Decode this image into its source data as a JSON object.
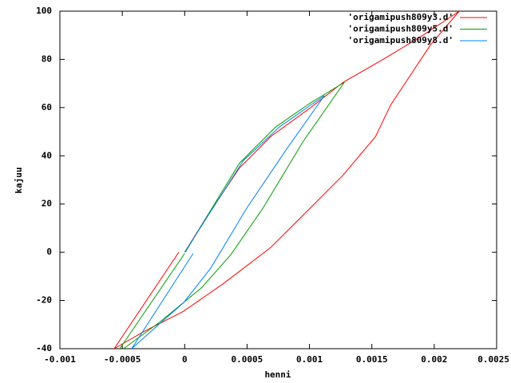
{
  "chart_data": {
    "type": "line",
    "x_label": "henni",
    "y_label": "kajuu",
    "xlim": [
      -0.001,
      0.0025
    ],
    "xticks": [
      -0.001,
      -0.0005,
      0,
      0.0005,
      0.001,
      0.0015,
      0.002,
      0.0025
    ],
    "ylim": [
      -40,
      100
    ],
    "yticks": [
      -40,
      -20,
      0,
      20,
      40,
      60,
      80,
      100
    ],
    "grid": false,
    "legend": "top-right",
    "series": [
      {
        "name": "'origamipush809y3.d'",
        "color": "#ff0000",
        "x": [
          -0.000565,
          -4.7e-05,
          null,
          0,
          0.00018,
          0.00044,
          0.00069,
          0.00101,
          0.00127,
          0.00159,
          0.00191,
          0.0022,
          0.00197,
          0.00165,
          0.00153,
          0.00127,
          0.00101,
          0.00069,
          0.00031,
          -1e-05,
          -0.00033,
          -0.000565
        ],
        "values": [
          -40,
          0,
          null,
          0,
          15,
          35,
          48,
          60,
          70.5,
          80,
          90,
          100,
          86,
          61,
          48,
          32,
          18.5,
          2,
          -13,
          -24.5,
          -33,
          -40
        ]
      },
      {
        "name": "'origamipush809y5.d'",
        "color": "#00a000",
        "x": [
          -0.00052,
          0,
          null,
          5e-06,
          0.00018,
          0.00044,
          0.00073,
          0.00101,
          0.00128,
          0.00095,
          0.00063,
          0.00037,
          0.00014,
          -0.0002,
          -0.00049
        ],
        "values": [
          -40,
          -0.5,
          null,
          0,
          15,
          37,
          52,
          62,
          70.5,
          46,
          18.5,
          -1,
          -14.5,
          -29,
          -40
        ]
      },
      {
        "name": "'origamipush809y8.d'",
        "color": "#0080ff",
        "x": [
          -0.000425,
          6.8e-05,
          null,
          0,
          0.00021,
          0.00047,
          0.00076,
          0.00112,
          0.00082,
          0.0005,
          0.00021,
          -1e-05,
          -0.00023,
          -0.000425
        ],
        "values": [
          -40,
          -0.5,
          null,
          0,
          17,
          38,
          52,
          65,
          43,
          18.5,
          -6.5,
          -21,
          -31,
          -40
        ]
      }
    ]
  }
}
